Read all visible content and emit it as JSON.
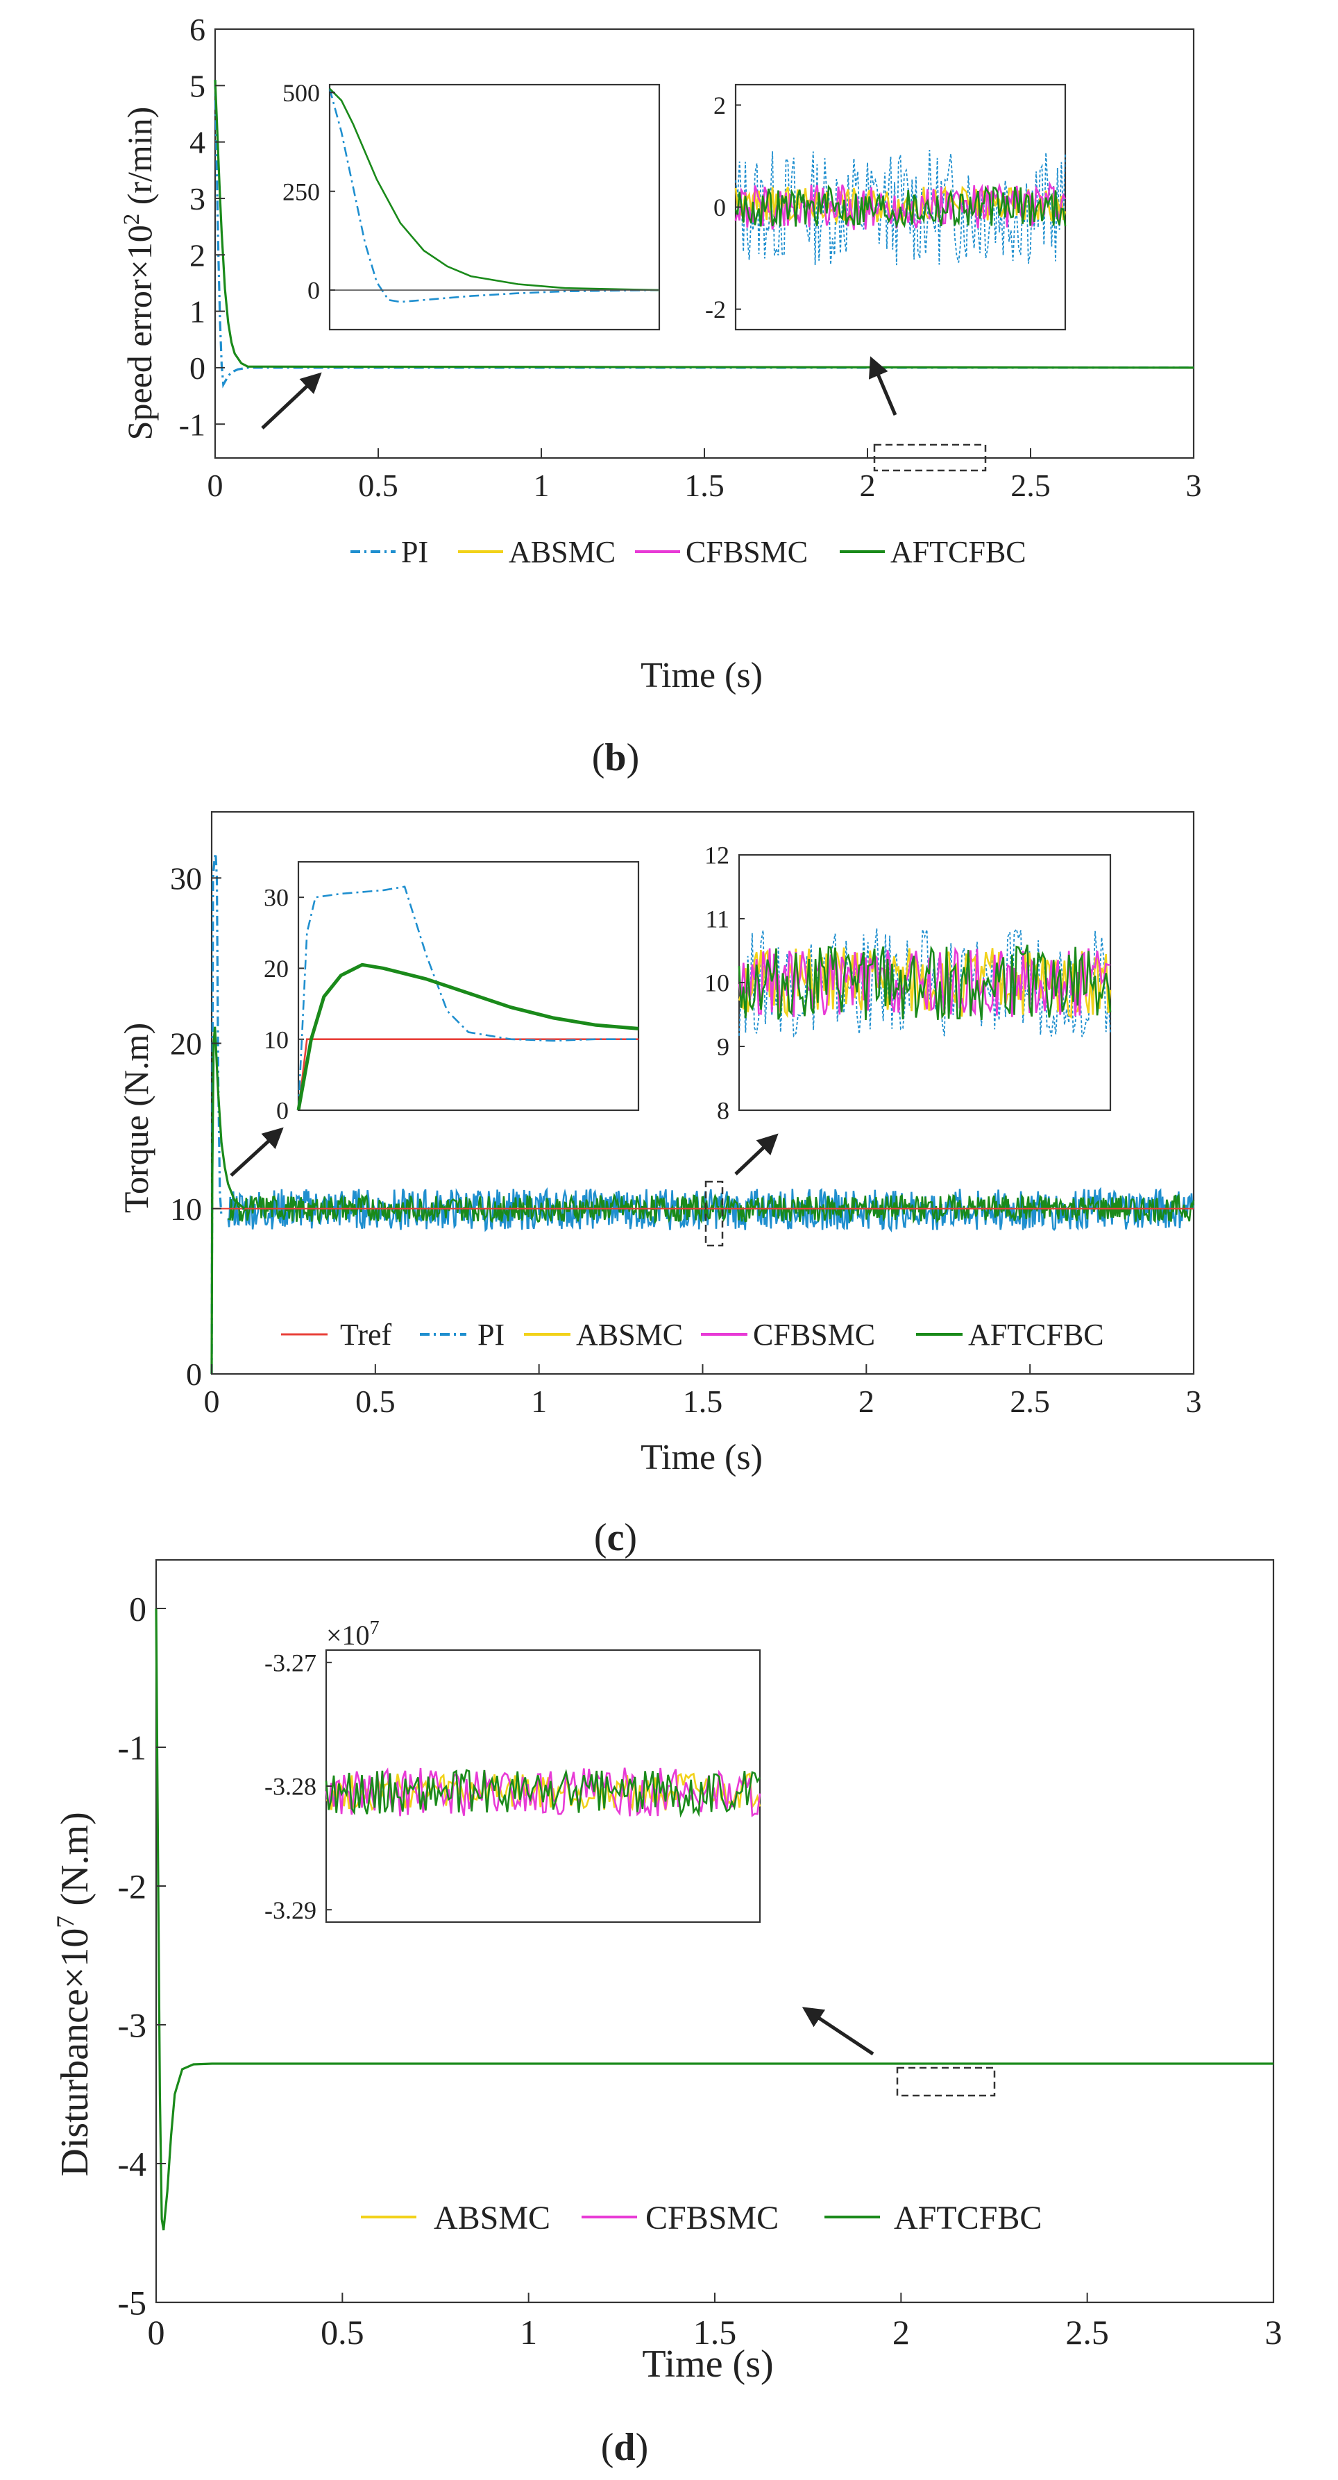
{
  "colors": {
    "PI": "#1f8fcf",
    "ABSMC": "#f2d21a",
    "CFBSMC": "#e83ad6",
    "AFTCFBC": "#1a8a1a",
    "Tref": "#e8403a",
    "axis": "#333333"
  },
  "chart_data": [
    {
      "id": "b",
      "type": "line",
      "caption_letter": "b",
      "xlabel": "Time (s)",
      "ylabel_base": "Speed error×10",
      "ylabel_sup": "2",
      "ylabel_unit": " (r/min)",
      "xlim": [
        0,
        3
      ],
      "ylim": [
        -1.6,
        6
      ],
      "xticks": [
        0,
        0.5,
        1,
        1.5,
        2,
        2.5,
        3
      ],
      "xtick_labels": [
        "0",
        "0.5",
        "1",
        "1.5",
        "2",
        "2.5",
        "3"
      ],
      "yticks": [
        -1,
        0,
        1,
        2,
        3,
        4,
        5,
        6
      ],
      "ytick_labels": [
        "-1",
        "0",
        "1",
        "2",
        "3",
        "4",
        "5",
        "6"
      ],
      "legend": [
        "PI",
        "ABSMC",
        "CFBSMC",
        "AFTCFBC"
      ],
      "legend_position": "bottom-center",
      "series": [
        {
          "name": "PI",
          "style": "dashdot",
          "x": [
            0,
            0.005,
            0.01,
            0.015,
            0.02,
            0.025,
            0.03,
            0.04,
            0.05,
            0.07,
            0.1,
            3
          ],
          "y": [
            5.1,
            3.5,
            2.0,
            0.8,
            0.05,
            -0.3,
            -0.25,
            -0.15,
            -0.08,
            -0.03,
            0,
            0
          ]
        },
        {
          "name": "AFTCFBC",
          "style": "solid",
          "x": [
            0,
            0.005,
            0.01,
            0.015,
            0.02,
            0.03,
            0.04,
            0.05,
            0.06,
            0.08,
            0.1,
            3
          ],
          "y": [
            5.1,
            4.4,
            3.7,
            3.0,
            2.4,
            1.4,
            0.8,
            0.45,
            0.25,
            0.08,
            0.02,
            0
          ]
        }
      ],
      "insets": [
        {
          "xlim": [
            0,
            0.14
          ],
          "ylim": [
            -100,
            520
          ],
          "yticks": [
            0,
            250,
            500
          ],
          "ytick_labels": [
            "0",
            "250",
            "500"
          ],
          "series": [
            {
              "name": "PI",
              "style": "dashdot",
              "x": [
                0,
                0.005,
                0.01,
                0.015,
                0.02,
                0.025,
                0.03,
                0.04,
                0.06,
                0.08,
                0.1,
                0.14
              ],
              "y": [
                510,
                400,
                260,
                120,
                20,
                -25,
                -30,
                -25,
                -15,
                -8,
                -3,
                0
              ]
            },
            {
              "name": "AFTCFBC",
              "style": "solid",
              "x": [
                0,
                0.005,
                0.01,
                0.015,
                0.02,
                0.03,
                0.04,
                0.05,
                0.06,
                0.08,
                0.1,
                0.14
              ],
              "y": [
                510,
                480,
                420,
                350,
                280,
                170,
                100,
                60,
                35,
                15,
                5,
                0
              ]
            },
            {
              "name": "zero",
              "style": "thin",
              "x": [
                0,
                0.14
              ],
              "y": [
                0,
                0
              ]
            }
          ]
        },
        {
          "xlim": [
            2,
            2.35
          ],
          "ylim": [
            -2.4,
            2.4
          ],
          "yticks": [
            -2,
            0,
            2
          ],
          "ytick_labels": [
            "-2",
            "0",
            "2"
          ],
          "noise": [
            {
              "name": "PI",
              "style": "dashed",
              "center": 0,
              "amp": 1.15
            },
            {
              "name": "ABSMC",
              "style": "solid",
              "center": 0.05,
              "amp": 0.35
            },
            {
              "name": "CFBSMC",
              "style": "solid",
              "center": 0,
              "amp": 0.45
            },
            {
              "name": "AFTCFBC",
              "style": "solid",
              "center": 0,
              "amp": 0.4
            }
          ]
        }
      ]
    },
    {
      "id": "c",
      "type": "line",
      "caption_letter": "c",
      "xlabel": "Time (s)",
      "ylabel": "Torque (N.m)",
      "xlim": [
        0,
        3
      ],
      "ylim": [
        0,
        34
      ],
      "xticks": [
        0,
        0.5,
        1,
        1.5,
        2,
        2.5,
        3
      ],
      "xtick_labels": [
        "0",
        "0.5",
        "1",
        "1.5",
        "2",
        "2.5",
        "3"
      ],
      "yticks": [
        0,
        10,
        20,
        30
      ],
      "ytick_labels": [
        "0",
        "10",
        "20",
        "30"
      ],
      "legend": [
        "Tref",
        "PI",
        "ABSMC",
        "CFBSMC",
        "AFTCFBC"
      ],
      "legend_position": "bottom-center",
      "series": [
        {
          "name": "Tref",
          "style": "solid",
          "x": [
            0,
            3
          ],
          "y": [
            10,
            10
          ]
        },
        {
          "name": "PI",
          "style": "dashdot",
          "x": [
            0,
            0.004,
            0.008,
            0.012,
            0.016,
            0.02,
            0.025,
            0.03
          ],
          "y": [
            0,
            30,
            31,
            31.5,
            30,
            18,
            11,
            9.5
          ]
        },
        {
          "name": "AFTCFBC",
          "style": "solid",
          "x": [
            0,
            0.002,
            0.006,
            0.01,
            0.02,
            0.03,
            0.04,
            0.05,
            0.07,
            0.1
          ],
          "y": [
            0,
            12,
            20,
            21,
            17,
            14,
            12.5,
            11.5,
            10.5,
            10
          ]
        }
      ],
      "band": {
        "from": 0.05,
        "to": 3,
        "PI": [
          8.7,
          11.2
        ],
        "AFTCFBC": [
          9.2,
          10.8
        ]
      },
      "insets": [
        {
          "xlim": [
            0,
            0.08
          ],
          "ylim": [
            0,
            35
          ],
          "yticks": [
            0,
            10,
            20,
            30
          ],
          "ytick_labels": [
            "0",
            "10",
            "20",
            "30"
          ],
          "series": [
            {
              "name": "Tref",
              "style": "solid",
              "x": [
                0,
                0.002,
                0.08
              ],
              "y": [
                0,
                10,
                10
              ]
            },
            {
              "name": "PI",
              "style": "dashdot",
              "x": [
                0,
                0.002,
                0.004,
                0.01,
                0.02,
                0.025,
                0.03,
                0.035,
                0.04,
                0.05,
                0.06,
                0.07,
                0.08
              ],
              "y": [
                0,
                25,
                30,
                30.5,
                31,
                31.5,
                22,
                14,
                11,
                10,
                9.8,
                10,
                10
              ]
            },
            {
              "name": "AFTCFBC",
              "style": "solid",
              "x": [
                0,
                0.003,
                0.006,
                0.01,
                0.015,
                0.02,
                0.03,
                0.04,
                0.05,
                0.06,
                0.07,
                0.08
              ],
              "y": [
                0,
                10,
                16,
                19,
                20.5,
                20,
                18.5,
                16.5,
                14.5,
                13,
                12,
                11.5
              ]
            }
          ]
        },
        {
          "xlim": [
            1.5,
            1.55
          ],
          "ylim": [
            8,
            12
          ],
          "yticks": [
            8,
            9,
            10,
            11,
            12
          ],
          "ytick_labels": [
            "8",
            "9",
            "10",
            "11",
            "12"
          ],
          "noise": [
            {
              "name": "PI",
              "style": "dashed",
              "center": 10,
              "amp": 0.85
            },
            {
              "name": "ABSMC",
              "style": "solid",
              "center": 10,
              "amp": 0.55
            },
            {
              "name": "CFBSMC",
              "style": "solid",
              "center": 10,
              "amp": 0.55
            },
            {
              "name": "AFTCFBC",
              "style": "solid",
              "center": 10,
              "amp": 0.6
            }
          ]
        }
      ]
    },
    {
      "id": "d",
      "type": "line",
      "caption_letter": "d",
      "xlabel": "Time (s)",
      "ylabel_base": "Disturbance×10",
      "ylabel_sup": "7",
      "ylabel_unit": " (N.m)",
      "xlim": [
        0,
        3
      ],
      "ylim": [
        -5,
        0.35
      ],
      "xticks": [
        0,
        0.5,
        1,
        1.5,
        2,
        2.5,
        3
      ],
      "xtick_labels": [
        "0",
        "0.5",
        "1",
        "1.5",
        "2",
        "2.5",
        "3"
      ],
      "yticks": [
        -5,
        -4,
        -3,
        -2,
        -1,
        0
      ],
      "ytick_labels": [
        "-5",
        "-4",
        "-3",
        "-2",
        "-1",
        "0"
      ],
      "legend": [
        "ABSMC",
        "CFBSMC",
        "AFTCFBC"
      ],
      "legend_position": "bottom-center",
      "series": [
        {
          "name": "AFTCFBC",
          "style": "solid",
          "x": [
            0,
            0.005,
            0.01,
            0.015,
            0.02,
            0.03,
            0.04,
            0.05,
            0.07,
            0.1,
            0.15,
            3
          ],
          "y": [
            0,
            -1.8,
            -3.5,
            -4.4,
            -4.48,
            -4.2,
            -3.8,
            -3.5,
            -3.32,
            -3.285,
            -3.28,
            -3.28
          ]
        }
      ],
      "insets": [
        {
          "xlim": [
            2,
            2.25
          ],
          "ylim": [
            -3.291,
            -3.269
          ],
          "yticks": [
            -3.29,
            -3.28,
            -3.27
          ],
          "ytick_labels": [
            "-3.29",
            "-3.28",
            "-3.27"
          ],
          "multiplier": "×10",
          "multiplier_sup": "7",
          "noise": [
            {
              "name": "ABSMC",
              "style": "solid",
              "center": -3.2805,
              "amp": 0.0015
            },
            {
              "name": "CFBSMC",
              "style": "solid",
              "center": -3.2805,
              "amp": 0.002
            },
            {
              "name": "AFTCFBC",
              "style": "solid",
              "center": -3.2805,
              "amp": 0.0018
            }
          ]
        }
      ]
    }
  ]
}
